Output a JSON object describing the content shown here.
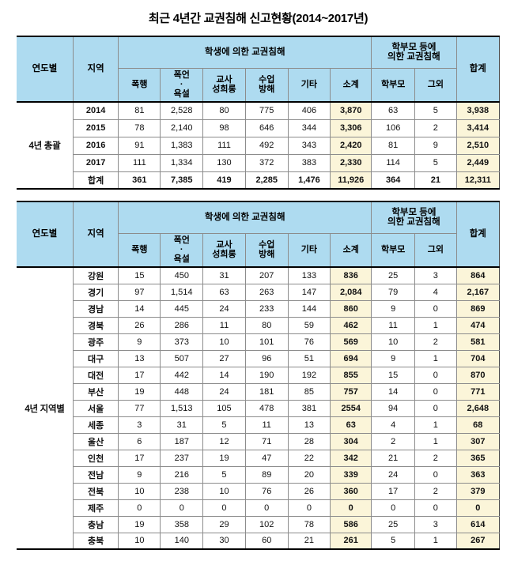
{
  "title": "최근 4년간 교권침해 신고현황(2014~2017년)",
  "colors": {
    "header_bg": "#aedbf0",
    "highlight_bg": "#fbf5d9",
    "border_thin": "#8c8c8c",
    "border_thick": "#000000"
  },
  "header": {
    "col_year": "연도별",
    "col_region": "지역",
    "group_student": "학생에 의한 교권침해",
    "group_parent": "학부모 등에\n의한 교권침해",
    "sub_headers": [
      "폭행",
      "폭언\n·\n욕설",
      "교사\n성희롱",
      "수업\n방해",
      "기타",
      "소계",
      "학부모",
      "그외"
    ],
    "col_total": "합계"
  },
  "tables": [
    {
      "name": "summary",
      "row_label": "4년 총괄",
      "rows": [
        {
          "label": "2014",
          "values": [
            "81",
            "2,528",
            "80",
            "775",
            "406",
            "3,870",
            "63",
            "5",
            "3,938"
          ]
        },
        {
          "label": "2015",
          "values": [
            "78",
            "2,140",
            "98",
            "646",
            "344",
            "3,306",
            "106",
            "2",
            "3,414"
          ]
        },
        {
          "label": "2016",
          "values": [
            "91",
            "1,383",
            "111",
            "492",
            "343",
            "2,420",
            "81",
            "9",
            "2,510"
          ]
        },
        {
          "label": "2017",
          "values": [
            "111",
            "1,334",
            "130",
            "372",
            "383",
            "2,330",
            "114",
            "5",
            "2,449"
          ]
        },
        {
          "label": "합계",
          "is_total": true,
          "values": [
            "361",
            "7,385",
            "419",
            "2,285",
            "1,476",
            "11,926",
            "364",
            "21",
            "12,311"
          ]
        }
      ]
    },
    {
      "name": "regional",
      "row_label": "4년 지역별",
      "rows": [
        {
          "label": "강원",
          "values": [
            "15",
            "450",
            "31",
            "207",
            "133",
            "836",
            "25",
            "3",
            "864"
          ]
        },
        {
          "label": "경기",
          "values": [
            "97",
            "1,514",
            "63",
            "263",
            "147",
            "2,084",
            "79",
            "4",
            "2,167"
          ]
        },
        {
          "label": "경남",
          "values": [
            "14",
            "445",
            "24",
            "233",
            "144",
            "860",
            "9",
            "0",
            "869"
          ]
        },
        {
          "label": "경북",
          "values": [
            "26",
            "286",
            "11",
            "80",
            "59",
            "462",
            "11",
            "1",
            "474"
          ]
        },
        {
          "label": "광주",
          "values": [
            "9",
            "373",
            "10",
            "101",
            "76",
            "569",
            "10",
            "2",
            "581"
          ]
        },
        {
          "label": "대구",
          "values": [
            "13",
            "507",
            "27",
            "96",
            "51",
            "694",
            "9",
            "1",
            "704"
          ]
        },
        {
          "label": "대전",
          "values": [
            "17",
            "442",
            "14",
            "190",
            "192",
            "855",
            "15",
            "0",
            "870"
          ]
        },
        {
          "label": "부산",
          "values": [
            "19",
            "448",
            "24",
            "181",
            "85",
            "757",
            "14",
            "0",
            "771"
          ]
        },
        {
          "label": "서울",
          "values": [
            "77",
            "1,513",
            "105",
            "478",
            "381",
            "2554",
            "94",
            "0",
            "2,648"
          ]
        },
        {
          "label": "세종",
          "values": [
            "3",
            "31",
            "5",
            "11",
            "13",
            "63",
            "4",
            "1",
            "68"
          ]
        },
        {
          "label": "울산",
          "values": [
            "6",
            "187",
            "12",
            "71",
            "28",
            "304",
            "2",
            "1",
            "307"
          ]
        },
        {
          "label": "인천",
          "values": [
            "17",
            "237",
            "19",
            "47",
            "22",
            "342",
            "21",
            "2",
            "365"
          ]
        },
        {
          "label": "전남",
          "values": [
            "9",
            "216",
            "5",
            "89",
            "20",
            "339",
            "24",
            "0",
            "363"
          ]
        },
        {
          "label": "전북",
          "values": [
            "10",
            "238",
            "10",
            "76",
            "26",
            "360",
            "17",
            "2",
            "379"
          ]
        },
        {
          "label": "제주",
          "values": [
            "0",
            "0",
            "0",
            "0",
            "0",
            "0",
            "0",
            "0",
            "0"
          ]
        },
        {
          "label": "충남",
          "values": [
            "19",
            "358",
            "29",
            "102",
            "78",
            "586",
            "25",
            "3",
            "614"
          ]
        },
        {
          "label": "충북",
          "values": [
            "10",
            "140",
            "30",
            "60",
            "21",
            "261",
            "5",
            "1",
            "267"
          ]
        }
      ]
    }
  ]
}
